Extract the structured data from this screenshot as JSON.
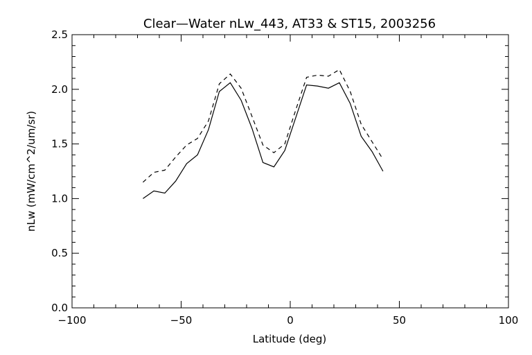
{
  "chart_data": {
    "type": "line",
    "title": "Clear—Water nLw_443, AT33 & ST15, 2003256",
    "xlabel": "Latitude (deg)",
    "ylabel": "nLw (mW/cm^2/um/sr)",
    "xlim": [
      -100,
      100
    ],
    "ylim": [
      0.0,
      2.5
    ],
    "xticks": [
      -100,
      -50,
      0,
      50,
      100
    ],
    "xtick_labels": [
      "−100",
      "−50",
      "0",
      "50",
      "100"
    ],
    "yticks": [
      0.0,
      0.5,
      1.0,
      1.5,
      2.0,
      2.5
    ],
    "ytick_labels": [
      "0.0",
      "0.5",
      "1.0",
      "1.5",
      "2.0",
      "2.5"
    ],
    "grid": false,
    "series": [
      {
        "line_style": "solid",
        "color": "#000000",
        "x": [
          -67.5,
          -62.5,
          -57.5,
          -52.5,
          -47.5,
          -42.5,
          -37.5,
          -32.5,
          -27.5,
          -22.5,
          -17.5,
          -12.5,
          -7.5,
          -2.5,
          2.5,
          7.5,
          12.5,
          17.5,
          22.5,
          27.5,
          32.5,
          37.5,
          42.5
        ],
        "values": [
          1.0,
          1.07,
          1.05,
          1.16,
          1.32,
          1.4,
          1.63,
          1.98,
          2.06,
          1.9,
          1.64,
          1.33,
          1.29,
          1.44,
          1.74,
          2.04,
          2.03,
          2.01,
          2.06,
          1.87,
          1.57,
          1.43,
          1.25
        ]
      },
      {
        "line_style": "dashed",
        "color": "#000000",
        "x": [
          -67.5,
          -62.5,
          -57.5,
          -52.5,
          -47.5,
          -42.5,
          -37.5,
          -32.5,
          -27.5,
          -22.5,
          -17.5,
          -12.5,
          -7.5,
          -2.5,
          2.5,
          7.5,
          12.5,
          17.5,
          22.5,
          27.5,
          32.5,
          37.5,
          42.5
        ],
        "values": [
          1.15,
          1.24,
          1.26,
          1.38,
          1.49,
          1.55,
          1.71,
          2.05,
          2.14,
          2.01,
          1.75,
          1.49,
          1.42,
          1.5,
          1.81,
          2.11,
          2.13,
          2.12,
          2.18,
          1.98,
          1.68,
          1.52,
          1.36
        ]
      }
    ]
  }
}
